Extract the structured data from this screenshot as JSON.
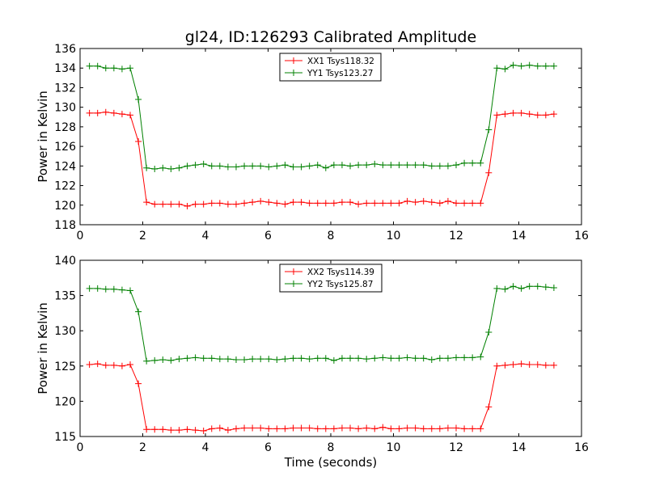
{
  "chart_data": [
    {
      "type": "line",
      "title": "gl24, ID:126293 Calibrated Amplitude",
      "xlabel": "",
      "ylabel": "Power in Kelvin",
      "xlim": [
        0,
        16
      ],
      "ylim": [
        118,
        136
      ],
      "xticks": [
        "0",
        "2",
        "4",
        "6",
        "8",
        "10",
        "12",
        "14",
        "16"
      ],
      "yticks": [
        "118",
        "120",
        "122",
        "124",
        "126",
        "128",
        "130",
        "132",
        "134",
        "136"
      ],
      "grid": false,
      "legend_position": "top-center",
      "x": [
        0.3,
        0.56,
        0.82,
        1.08,
        1.34,
        1.6,
        1.86,
        2.12,
        2.38,
        2.64,
        2.9,
        3.16,
        3.42,
        3.68,
        3.94,
        4.2,
        4.46,
        4.72,
        4.98,
        5.24,
        5.5,
        5.76,
        6.02,
        6.28,
        6.54,
        6.8,
        7.06,
        7.32,
        7.58,
        7.84,
        8.1,
        8.36,
        8.62,
        8.88,
        9.14,
        9.4,
        9.66,
        9.92,
        10.18,
        10.44,
        10.7,
        10.96,
        11.22,
        11.48,
        11.74,
        12.0,
        12.26,
        12.52,
        12.78,
        13.04,
        13.3,
        13.56,
        13.82,
        14.08,
        14.34,
        14.6,
        14.86,
        15.12
      ],
      "series": [
        {
          "name": "XX1 Tsys118.32",
          "color": "#ff0000",
          "values": [
            129.4,
            129.4,
            129.5,
            129.4,
            129.3,
            129.2,
            126.5,
            120.3,
            120.1,
            120.1,
            120.1,
            120.1,
            119.9,
            120.1,
            120.1,
            120.2,
            120.2,
            120.1,
            120.1,
            120.2,
            120.3,
            120.4,
            120.3,
            120.2,
            120.1,
            120.3,
            120.3,
            120.2,
            120.2,
            120.2,
            120.2,
            120.3,
            120.3,
            120.1,
            120.2,
            120.2,
            120.2,
            120.2,
            120.2,
            120.4,
            120.3,
            120.4,
            120.3,
            120.2,
            120.4,
            120.2,
            120.2,
            120.2,
            120.2,
            123.3,
            129.2,
            129.3,
            129.4,
            129.4,
            129.3,
            129.2,
            129.2,
            129.3
          ]
        },
        {
          "name": "YY1 Tsys123.27",
          "color": "#008000",
          "values": [
            134.2,
            134.2,
            134.0,
            134.0,
            133.9,
            134.0,
            130.8,
            123.8,
            123.7,
            123.8,
            123.7,
            123.8,
            124.0,
            124.1,
            124.2,
            124.0,
            124.0,
            123.9,
            123.9,
            124.0,
            124.0,
            124.0,
            123.9,
            124.0,
            124.1,
            123.9,
            123.9,
            124.0,
            124.1,
            123.8,
            124.1,
            124.1,
            124.0,
            124.1,
            124.1,
            124.2,
            124.1,
            124.1,
            124.1,
            124.1,
            124.1,
            124.1,
            124.0,
            124.0,
            124.0,
            124.1,
            124.3,
            124.3,
            124.3,
            127.7,
            134.0,
            133.9,
            134.3,
            134.2,
            134.3,
            134.2,
            134.2,
            134.2
          ]
        }
      ]
    },
    {
      "type": "line",
      "title": "",
      "xlabel": "Time (seconds)",
      "ylabel": "Power in Kelvin",
      "xlim": [
        0,
        16
      ],
      "ylim": [
        115,
        140
      ],
      "xticks": [
        "0",
        "2",
        "4",
        "6",
        "8",
        "10",
        "12",
        "14",
        "16"
      ],
      "yticks": [
        "115",
        "120",
        "125",
        "130",
        "135",
        "140"
      ],
      "grid": false,
      "legend_position": "top-center",
      "x": [
        0.3,
        0.56,
        0.82,
        1.08,
        1.34,
        1.6,
        1.86,
        2.12,
        2.38,
        2.64,
        2.9,
        3.16,
        3.42,
        3.68,
        3.94,
        4.2,
        4.46,
        4.72,
        4.98,
        5.24,
        5.5,
        5.76,
        6.02,
        6.28,
        6.54,
        6.8,
        7.06,
        7.32,
        7.58,
        7.84,
        8.1,
        8.36,
        8.62,
        8.88,
        9.14,
        9.4,
        9.66,
        9.92,
        10.18,
        10.44,
        10.7,
        10.96,
        11.22,
        11.48,
        11.74,
        12.0,
        12.26,
        12.52,
        12.78,
        13.04,
        13.3,
        13.56,
        13.82,
        14.08,
        14.34,
        14.6,
        14.86,
        15.12
      ],
      "series": [
        {
          "name": "XX2 Tsys114.39",
          "color": "#ff0000",
          "values": [
            125.2,
            125.3,
            125.1,
            125.1,
            125.0,
            125.2,
            122.5,
            116.0,
            116.0,
            116.0,
            115.9,
            115.9,
            116.0,
            115.9,
            115.8,
            116.1,
            116.2,
            115.9,
            116.1,
            116.2,
            116.2,
            116.2,
            116.1,
            116.1,
            116.1,
            116.2,
            116.2,
            116.2,
            116.1,
            116.1,
            116.1,
            116.2,
            116.2,
            116.1,
            116.2,
            116.1,
            116.3,
            116.1,
            116.1,
            116.2,
            116.2,
            116.1,
            116.1,
            116.1,
            116.2,
            116.2,
            116.1,
            116.1,
            116.1,
            119.2,
            125.0,
            125.1,
            125.2,
            125.3,
            125.2,
            125.2,
            125.1,
            125.1
          ]
        },
        {
          "name": "YY2 Tsys125.87",
          "color": "#008000",
          "values": [
            136.0,
            136.0,
            135.9,
            135.9,
            135.8,
            135.7,
            132.7,
            125.7,
            125.8,
            125.9,
            125.8,
            126.0,
            126.1,
            126.2,
            126.1,
            126.1,
            126.0,
            126.0,
            125.9,
            125.9,
            126.0,
            126.0,
            126.0,
            125.9,
            126.0,
            126.1,
            126.1,
            126.0,
            126.1,
            126.1,
            125.8,
            126.1,
            126.1,
            126.1,
            126.0,
            126.1,
            126.2,
            126.1,
            126.1,
            126.2,
            126.1,
            126.1,
            125.9,
            126.1,
            126.1,
            126.2,
            126.2,
            126.2,
            126.3,
            129.8,
            136.0,
            135.9,
            136.3,
            136.0,
            136.3,
            136.3,
            136.2,
            136.1
          ]
        }
      ]
    }
  ]
}
